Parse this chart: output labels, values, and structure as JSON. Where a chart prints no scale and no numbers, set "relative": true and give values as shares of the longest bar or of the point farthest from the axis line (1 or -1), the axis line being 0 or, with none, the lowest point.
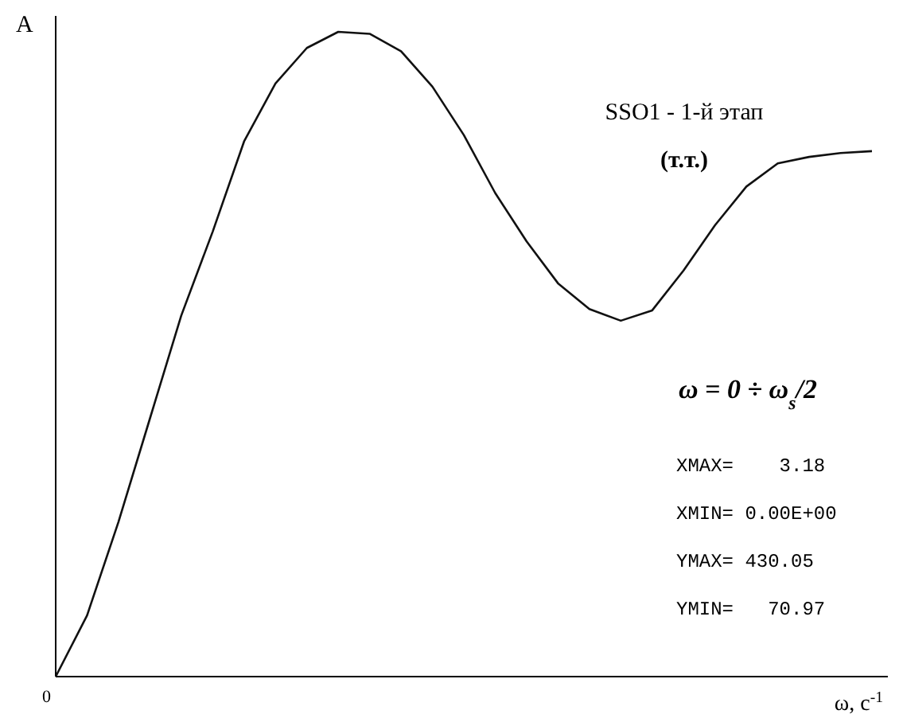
{
  "chart_data": {
    "type": "line",
    "relative": true,
    "xlabel": "ω, с$^{-1}$",
    "ylabel": "A",
    "categories": [
      null,
      null,
      null,
      null,
      null,
      null,
      null,
      null,
      null,
      null,
      null,
      null,
      null,
      null,
      null,
      null,
      null,
      null,
      null,
      null,
      null,
      null,
      null,
      null,
      null,
      null,
      null
    ],
    "series": [
      {
        "color": "#111111",
        "values": [
          0,
          0.095,
          0.24,
          0.4,
          0.56,
          0.69,
          0.83,
          0.92,
          0.975,
          1,
          0.997,
          0.97,
          0.915,
          0.84,
          0.75,
          0.675,
          0.61,
          0.57,
          0.552,
          0.568,
          0.63,
          0.7,
          0.76,
          0.796,
          0.806,
          0.812,
          0.815
        ]
      }
    ],
    "annotations": [
      "SSO1 - 1-й этап",
      "(т.т.)",
      "ω = 0 ÷ ω$_{s}$/2",
      "XMAX=    3.18",
      "XMIN= 0.00E+00",
      "YMAX= 430.05",
      "YMIN=   70.97",
      "0"
    ],
    "line_style": "solid"
  }
}
